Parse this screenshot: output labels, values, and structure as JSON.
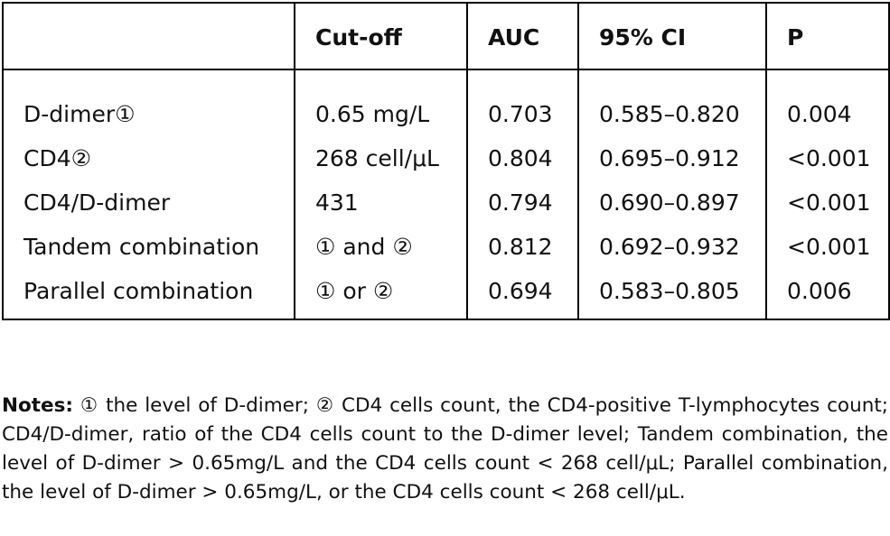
{
  "table": {
    "headers": [
      "",
      "Cut-off",
      "AUC",
      "95% CI",
      "P"
    ],
    "rows": [
      [
        "D-dimer①",
        "0.65 mg/L",
        "0.703",
        "0.585–0.820",
        "0.004"
      ],
      [
        "CD4②",
        "268 cell/μL",
        "0.804",
        "0.695–0.912",
        "<0.001"
      ],
      [
        "CD4/D-dimer",
        "431",
        "0.794",
        "0.690–0.897",
        "<0.001"
      ],
      [
        "Tandem combination",
        "① and ②",
        "0.812",
        "0.692–0.932",
        "<0.001"
      ],
      [
        "Parallel combination",
        "① or ②",
        "0.694",
        "0.583–0.805",
        "0.006"
      ]
    ]
  },
  "notes": {
    "label": "Notes:",
    "text": "① the level of D-dimer; ② CD4 cells count, the CD4-positive T-lymphocytes count; CD4/D-dimer, ratio of the CD4 cells count to the D-dimer level; Tandem combination, the level of D-dimer > 0.65mg/L and the CD4 cells count < 268 cell/μL; Parallel combination, the level of D-dimer > 0.65mg/L, or the CD4 cells count < 268 cell/μL."
  }
}
